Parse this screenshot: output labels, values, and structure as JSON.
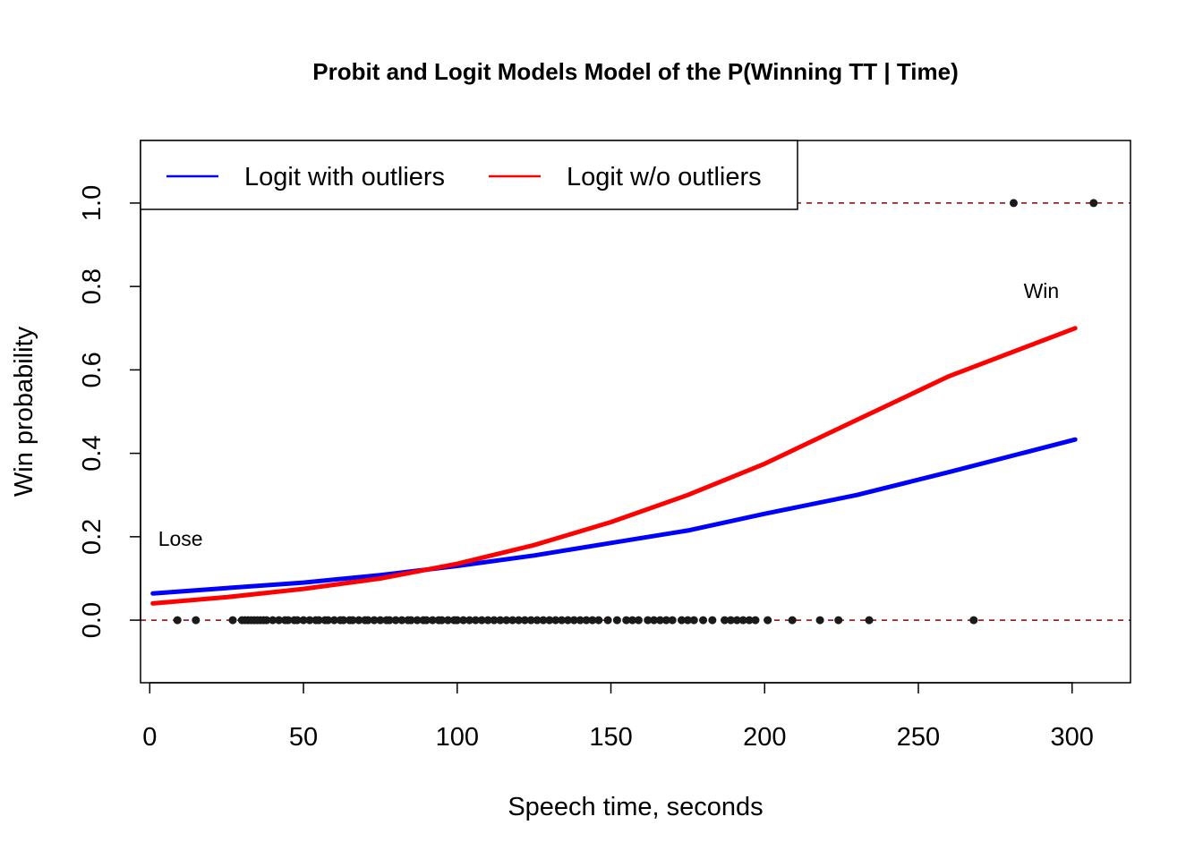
{
  "chart_data": {
    "type": "line",
    "title": "Probit and Logit Models Model of the P(Winning TT | Time)",
    "xlabel": "Speech time, seconds",
    "ylabel": "Win probability",
    "xlim": [
      -3,
      319
    ],
    "ylim": [
      -0.15,
      1.15
    ],
    "x_ticks": [
      0,
      50,
      100,
      150,
      200,
      250,
      300
    ],
    "y_ticks": [
      0.0,
      0.2,
      0.4,
      0.6,
      0.8,
      1.0
    ],
    "x_tick_labels": [
      "0",
      "50",
      "100",
      "150",
      "200",
      "250",
      "300"
    ],
    "y_tick_labels": [
      "0.0",
      "0.2",
      "0.4",
      "0.6",
      "0.8",
      "1.0"
    ],
    "grid": false,
    "legend": {
      "placement": "top-left",
      "entries": [
        {
          "label": "Logit with outliers",
          "color": "#0000FF"
        },
        {
          "label": "Logit w/o outliers",
          "color": "#FF0000"
        }
      ]
    },
    "reference_lines": [
      {
        "y": 0,
        "style": "dashed",
        "color": "#8B0000"
      },
      {
        "y": 1,
        "style": "dashed",
        "color": "#8B0000"
      }
    ],
    "series": [
      {
        "name": "Logit with outliers",
        "color": "#0000FF",
        "x": [
          1,
          25,
          50,
          75,
          100,
          125,
          150,
          175,
          200,
          230,
          260,
          301
        ],
        "y": [
          0.064,
          0.077,
          0.09,
          0.108,
          0.13,
          0.155,
          0.185,
          0.215,
          0.255,
          0.3,
          0.355,
          0.433
        ]
      },
      {
        "name": "Logit w/o outliers",
        "color": "#FF0000",
        "x": [
          1,
          25,
          50,
          75,
          100,
          125,
          150,
          175,
          200,
          230,
          260,
          301
        ],
        "y": [
          0.04,
          0.055,
          0.075,
          0.1,
          0.135,
          0.18,
          0.235,
          0.3,
          0.375,
          0.48,
          0.585,
          0.7
        ]
      }
    ],
    "points": {
      "color": "#1a1a1a",
      "zero_x": [
        9,
        15,
        27,
        30,
        31,
        32,
        33,
        34,
        35,
        36,
        37,
        38,
        40,
        42,
        44,
        45,
        47,
        48,
        50,
        52,
        54,
        55,
        57,
        58,
        60,
        62,
        63,
        65,
        66,
        68,
        70,
        71,
        73,
        75,
        77,
        78,
        80,
        82,
        84,
        85,
        87,
        89,
        90,
        92,
        94,
        95,
        97,
        99,
        100,
        102,
        104,
        106,
        108,
        110,
        112,
        114,
        116,
        118,
        120,
        122,
        124,
        126,
        128,
        130,
        132,
        134,
        136,
        138,
        140,
        142,
        144,
        146,
        149,
        152,
        155,
        157,
        159,
        162,
        164,
        166,
        168,
        170,
        173,
        175,
        177,
        180,
        183,
        187,
        189,
        191,
        193,
        195,
        197,
        201,
        209,
        218,
        224,
        234,
        268
      ],
      "one_x": [
        281,
        307
      ]
    },
    "annotations": [
      {
        "text": "Lose",
        "x": 10,
        "y": 0.195
      },
      {
        "text": "Win",
        "x": 290,
        "y": 0.79
      }
    ]
  }
}
